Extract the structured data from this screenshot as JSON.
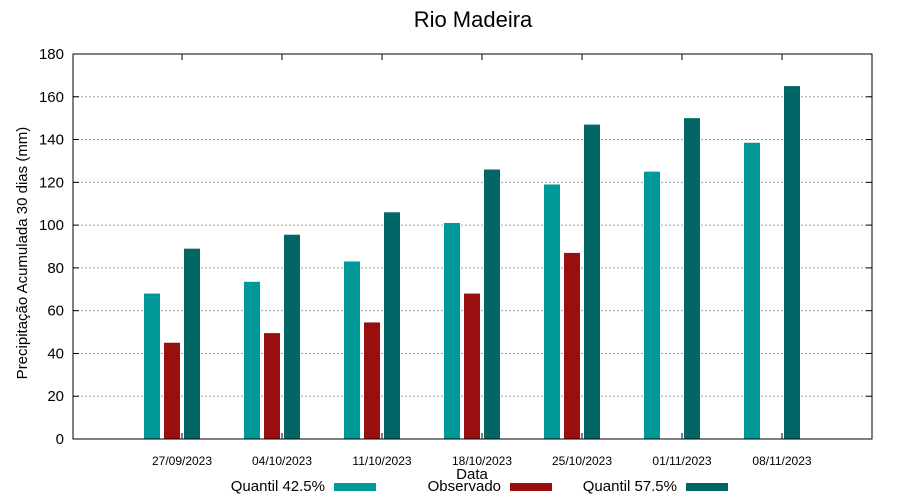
{
  "chart_data": {
    "type": "bar",
    "title": "Rio Madeira",
    "xlabel": "Data",
    "ylabel": "Precipitação Acumulada 30 dias (mm)",
    "ylim": [
      0,
      180
    ],
    "yticks": [
      0,
      20,
      40,
      60,
      80,
      100,
      120,
      140,
      160,
      180
    ],
    "grid": true,
    "legend_position": "bottom",
    "categories": [
      "27/09/2023",
      "04/10/2023",
      "11/10/2023",
      "18/10/2023",
      "25/10/2023",
      "01/11/2023",
      "08/11/2023"
    ],
    "series": [
      {
        "name": "Quantil 42.5%",
        "color": "#009999",
        "values": [
          68,
          73.5,
          83,
          101,
          119,
          125,
          138.5
        ]
      },
      {
        "name": "Observado",
        "color": "#990f0f",
        "values": [
          45,
          49.5,
          54.5,
          68,
          87,
          null,
          null
        ]
      },
      {
        "name": "Quantil 57.5%",
        "color": "#006666",
        "values": [
          89,
          95.5,
          106,
          126,
          147,
          150,
          165
        ]
      }
    ]
  }
}
